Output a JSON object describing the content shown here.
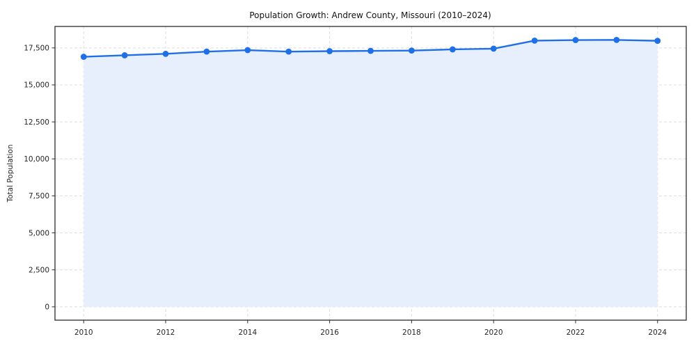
{
  "chart_data": {
    "type": "area",
    "title": "Population Growth: Andrew County, Missouri (2010–2024)",
    "xlabel": "",
    "ylabel": "Total Population",
    "x": [
      2010,
      2011,
      2012,
      2013,
      2014,
      2015,
      2016,
      2017,
      2018,
      2019,
      2020,
      2021,
      2022,
      2023,
      2024
    ],
    "series": [
      {
        "name": "Total Population",
        "values": [
          16900,
          17000,
          17100,
          17250,
          17350,
          17250,
          17280,
          17300,
          17320,
          17400,
          17450,
          17990,
          18030,
          18040,
          17980
        ]
      }
    ],
    "xticks": [
      {
        "v": 2010,
        "label": "2010"
      },
      {
        "v": 2012,
        "label": "2012"
      },
      {
        "v": 2014,
        "label": "2014"
      },
      {
        "v": 2016,
        "label": "2016"
      },
      {
        "v": 2018,
        "label": "2018"
      },
      {
        "v": 2020,
        "label": "2020"
      },
      {
        "v": 2022,
        "label": "2022"
      },
      {
        "v": 2024,
        "label": "2024"
      }
    ],
    "yticks": [
      {
        "v": 0,
        "label": "0"
      },
      {
        "v": 2500,
        "label": "2,500"
      },
      {
        "v": 5000,
        "label": "5,000"
      },
      {
        "v": 7500,
        "label": "7,500"
      },
      {
        "v": 10000,
        "label": "10,000"
      },
      {
        "v": 12500,
        "label": "12,500"
      },
      {
        "v": 15000,
        "label": "15,000"
      },
      {
        "v": 17500,
        "label": "17,500"
      }
    ],
    "xlim": [
      2009.3,
      2024.7
    ],
    "ylim": [
      -900,
      18950
    ],
    "grid": true,
    "grid_style": "dashed",
    "legend": false,
    "colors": {
      "line": "#1f6fe6",
      "marker": "#1f6fe6",
      "fill": "#e8effc",
      "grid": "#dcdcdc",
      "spine": "#2b2b2b",
      "background": "#ffffff"
    }
  }
}
